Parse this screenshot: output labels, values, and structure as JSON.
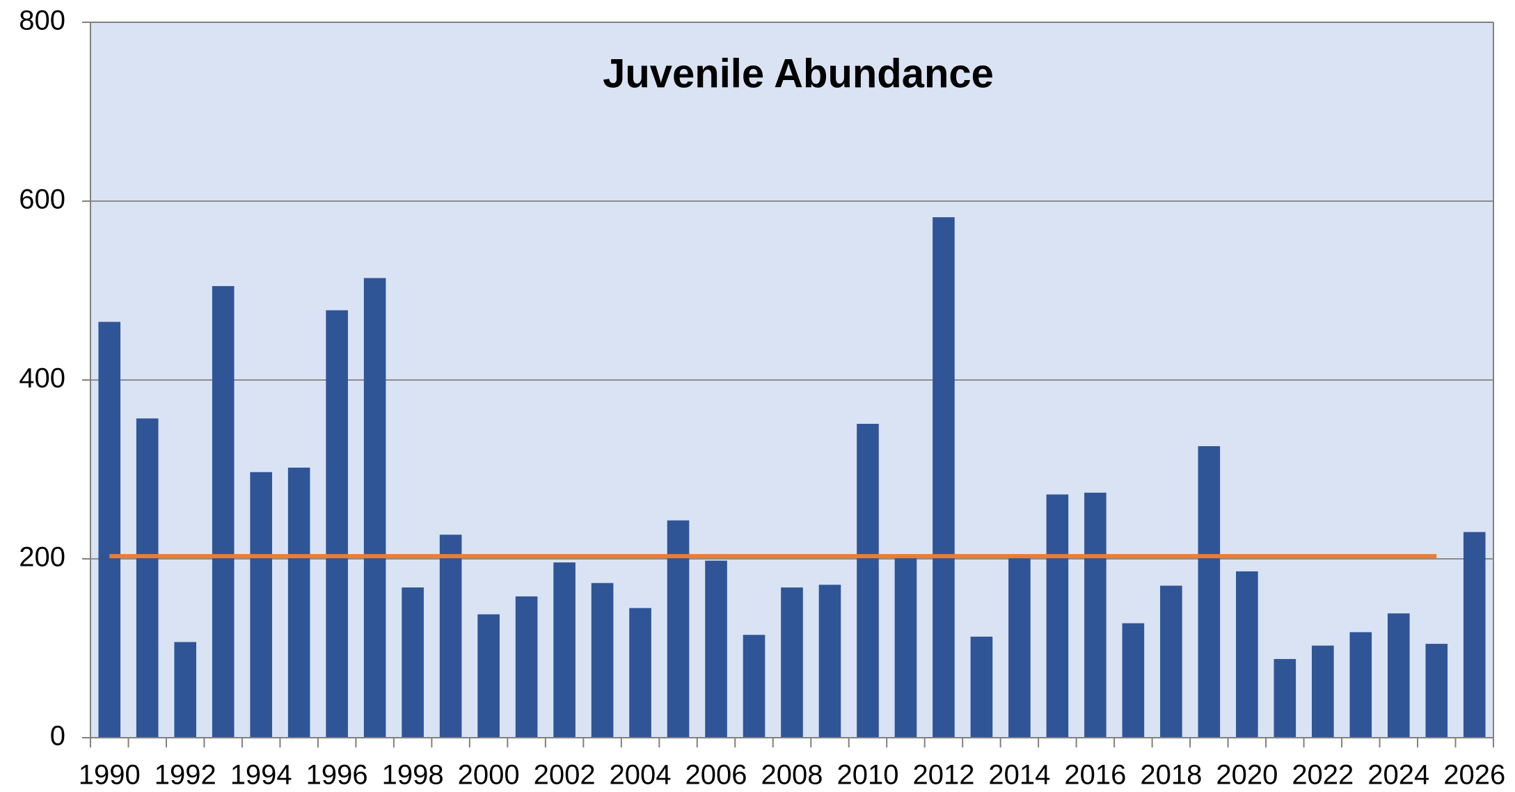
{
  "chart_data": {
    "type": "bar",
    "title": "Juvenile Abundance",
    "categories": [
      "1990",
      null,
      "1992",
      null,
      "1994",
      null,
      "1996",
      null,
      "1998",
      null,
      "2000",
      null,
      "2002",
      null,
      "2004",
      null,
      "2006",
      null,
      "2008",
      null,
      "2010",
      null,
      "2012",
      null,
      "2014",
      null,
      "2016",
      null,
      "2018",
      null,
      "2020",
      null,
      "2022",
      null,
      "2024",
      null,
      "2026"
    ],
    "values": [
      465,
      357,
      107,
      505,
      297,
      302,
      478,
      514,
      168,
      227,
      138,
      158,
      196,
      173,
      145,
      243,
      198,
      115,
      168,
      171,
      351,
      205,
      582,
      113,
      205,
      272,
      274,
      128,
      170,
      326,
      186,
      88,
      103,
      118,
      139,
      105,
      230
    ],
    "color": "#2f5597",
    "reference_line": {
      "value": 203,
      "color": "#ed7d31"
    },
    "ylim": [
      0,
      800
    ],
    "yticks": [
      0,
      200,
      400,
      600,
      800
    ],
    "grid": true,
    "background": "#dae3f3"
  }
}
